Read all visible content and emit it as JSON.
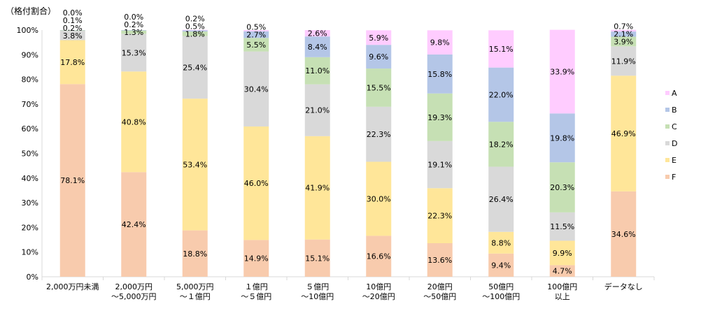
{
  "chart_data": {
    "type": "bar",
    "stacked": true,
    "ylabel": "（格付割合）",
    "ylim": [
      0,
      100
    ],
    "yticks": [
      "0%",
      "10%",
      "20%",
      "30%",
      "40%",
      "50%",
      "60%",
      "70%",
      "80%",
      "90%",
      "100%"
    ],
    "grid": false,
    "legend_position": "right",
    "categories": [
      [
        "2,000万円未満"
      ],
      [
        "2,000万円",
        "～5,000万円"
      ],
      [
        "5,000万円",
        "～１億円"
      ],
      [
        "１億円",
        "～５億円"
      ],
      [
        "５億円",
        "～10億円"
      ],
      [
        "10億円",
        "～20億円"
      ],
      [
        "20億円",
        "～50億円"
      ],
      [
        "50億円",
        "～100億円"
      ],
      [
        "100億円",
        "以上"
      ],
      [
        "データなし"
      ]
    ],
    "series": [
      {
        "name": "F",
        "color": "#F8CBAD",
        "values": [
          78.1,
          42.4,
          18.8,
          14.9,
          15.1,
          16.6,
          13.6,
          9.4,
          4.7,
          34.6
        ]
      },
      {
        "name": "E",
        "color": "#FFE699",
        "values": [
          17.8,
          40.8,
          53.4,
          46.0,
          41.9,
          30.0,
          22.3,
          8.8,
          9.9,
          46.9
        ]
      },
      {
        "name": "D",
        "color": "#D9D9D9",
        "values": [
          3.8,
          15.3,
          25.4,
          30.4,
          21.0,
          22.3,
          19.1,
          26.4,
          11.5,
          11.9
        ]
      },
      {
        "name": "C",
        "color": "#C6E0B4",
        "values": [
          0.2,
          1.3,
          1.8,
          5.5,
          11.0,
          15.5,
          19.3,
          18.2,
          20.3,
          3.9
        ]
      },
      {
        "name": "B",
        "color": "#B4C6E7",
        "values": [
          0.1,
          0.2,
          0.5,
          2.7,
          8.4,
          9.6,
          15.8,
          22.0,
          19.8,
          2.1
        ]
      },
      {
        "name": "A",
        "color": "#FFCCFF",
        "values": [
          0.0,
          0.0,
          0.2,
          0.5,
          2.6,
          5.9,
          9.8,
          15.1,
          33.9,
          0.7
        ]
      }
    ]
  }
}
